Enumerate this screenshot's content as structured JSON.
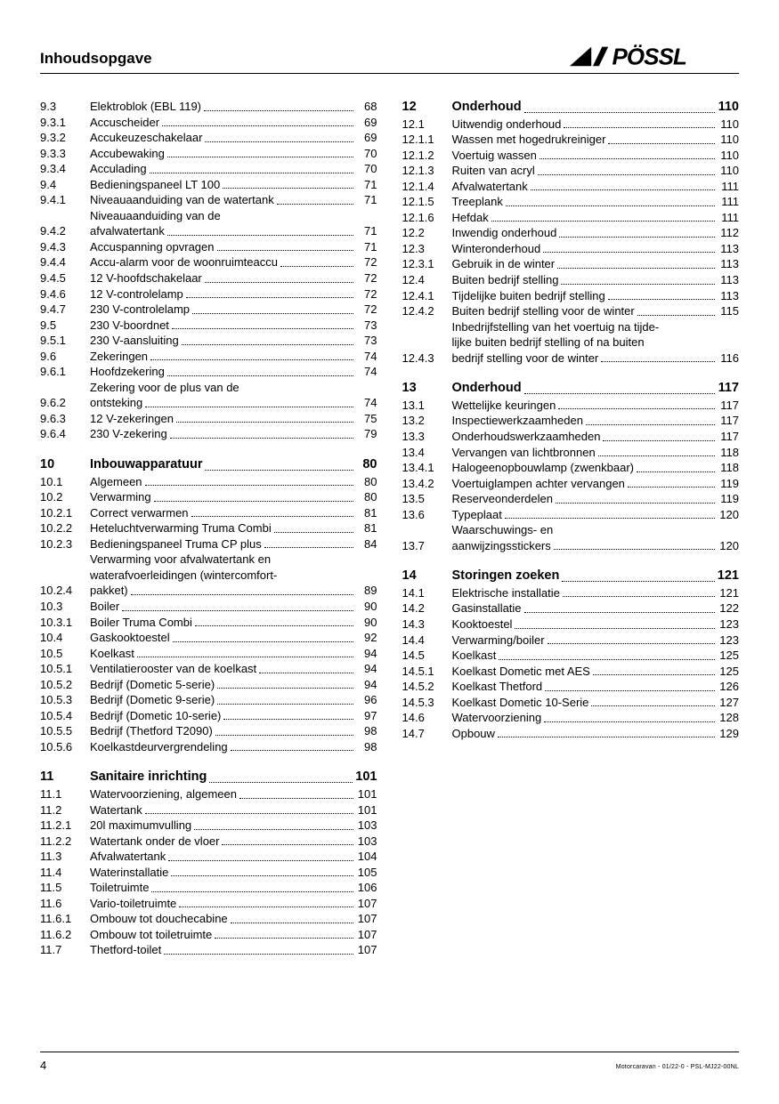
{
  "header": {
    "title": "Inhoudsopgave",
    "logo_text": "PÖSSL"
  },
  "page_number": "4",
  "footer_code": "Motorcaravan - 01/22-0 - PSL-MJ22-00NL",
  "left_column": [
    {
      "num": "9.3",
      "label": "Elektroblok (EBL 119)",
      "page": "68"
    },
    {
      "num": "9.3.1",
      "label": "Accuscheider",
      "page": "69"
    },
    {
      "num": "9.3.2",
      "label": "Accukeuzeschakelaar",
      "page": "69"
    },
    {
      "num": "9.3.3",
      "label": "Accubewaking",
      "page": "70"
    },
    {
      "num": "9.3.4",
      "label": "Acculading",
      "page": "70"
    },
    {
      "num": "9.4",
      "label": "Bedieningspaneel LT 100",
      "page": "71"
    },
    {
      "num": "9.4.1",
      "label": "Niveauaanduiding van de watertank",
      "page": "71"
    },
    {
      "num": "9.4.2",
      "label_lines": [
        "Niveauaanduiding van de",
        "afvalwatertank"
      ],
      "page": "71"
    },
    {
      "num": "9.4.3",
      "label": "Accuspanning opvragen",
      "page": "71"
    },
    {
      "num": "9.4.4",
      "label": "Accu-alarm voor de woonruimteaccu",
      "page": "72"
    },
    {
      "num": "9.4.5",
      "label": "12 V-hoofdschakelaar",
      "page": "72"
    },
    {
      "num": "9.4.6",
      "label": "12 V-controlelamp",
      "page": "72"
    },
    {
      "num": "9.4.7",
      "label": "230 V-controlelamp",
      "page": "72"
    },
    {
      "num": "9.5",
      "label": "230 V-boordnet",
      "page": "73"
    },
    {
      "num": "9.5.1",
      "label": "230 V-aansluiting",
      "page": "73"
    },
    {
      "num": "9.6",
      "label": "Zekeringen",
      "page": "74"
    },
    {
      "num": "9.6.1",
      "label": "Hoofdzekering",
      "page": "74"
    },
    {
      "num": "9.6.2",
      "label_lines": [
        "Zekering voor de plus van de",
        "ontsteking"
      ],
      "page": "74"
    },
    {
      "num": "9.6.3",
      "label": "12 V-zekeringen",
      "page": "75"
    },
    {
      "num": "9.6.4",
      "label": "230 V-zekering",
      "page": "79"
    },
    {
      "num": "10",
      "label": "Inbouwapparatuur",
      "page": "80",
      "section": true
    },
    {
      "num": "10.1",
      "label": "Algemeen",
      "page": "80"
    },
    {
      "num": "10.2",
      "label": "Verwarming",
      "page": "80"
    },
    {
      "num": "10.2.1",
      "label": "Correct verwarmen",
      "page": "81"
    },
    {
      "num": "10.2.2",
      "label": "Heteluchtverwarming Truma Combi",
      "page": "81"
    },
    {
      "num": "10.2.3",
      "label": "Bedieningspaneel Truma CP plus",
      "page": "84"
    },
    {
      "num": "10.2.4",
      "label_lines": [
        "Verwarming voor afvalwatertank en",
        "waterafvoerleidingen (wintercomfort-",
        "pakket)"
      ],
      "page": "89"
    },
    {
      "num": "10.3",
      "label": "Boiler",
      "page": "90"
    },
    {
      "num": "10.3.1",
      "label": "Boiler Truma Combi",
      "page": "90"
    },
    {
      "num": "10.4",
      "label": "Gaskooktoestel",
      "page": "92"
    },
    {
      "num": "10.5",
      "label": "Koelkast",
      "page": "94"
    },
    {
      "num": "10.5.1",
      "label": "Ventilatierooster van de koelkast",
      "page": "94"
    },
    {
      "num": "10.5.2",
      "label": "Bedrijf (Dometic 5-serie)",
      "page": "94"
    },
    {
      "num": "10.5.3",
      "label": "Bedrijf (Dometic 9-serie)",
      "page": "96"
    },
    {
      "num": "10.5.4",
      "label": "Bedrijf (Dometic 10-serie)",
      "page": "97"
    },
    {
      "num": "10.5.5",
      "label": "Bedrijf (Thetford T2090)",
      "page": "98"
    },
    {
      "num": "10.5.6",
      "label": "Koelkastdeurvergrendeling",
      "page": "98"
    },
    {
      "num": "11",
      "label": "Sanitaire inrichting",
      "page": "101",
      "section": true
    },
    {
      "num": "11.1",
      "label": "Watervoorziening, algemeen",
      "page": "101"
    },
    {
      "num": "11.2",
      "label": "Watertank",
      "page": "101"
    },
    {
      "num": "11.2.1",
      "label": "20l maximumvulling",
      "page": "103"
    },
    {
      "num": "11.2.2",
      "label": "Watertank onder de vloer",
      "page": "103"
    },
    {
      "num": "11.3",
      "label": "Afvalwatertank",
      "page": "104"
    },
    {
      "num": "11.4",
      "label": "Waterinstallatie",
      "page": "105"
    },
    {
      "num": "11.5",
      "label": "Toiletruimte",
      "page": "106"
    },
    {
      "num": "11.6",
      "label": "Vario-toiletruimte",
      "page": "107"
    },
    {
      "num": "11.6.1",
      "label": "Ombouw tot douchecabine",
      "page": "107"
    },
    {
      "num": "11.6.2",
      "label": "Ombouw tot toiletruimte",
      "page": "107"
    },
    {
      "num": "11.7",
      "label": "Thetford-toilet",
      "page": "107"
    }
  ],
  "right_column": [
    {
      "num": "12",
      "label": "Onderhoud",
      "page": "110",
      "section": true,
      "first": true
    },
    {
      "num": "12.1",
      "label": "Uitwendig onderhoud",
      "page": "110"
    },
    {
      "num": "12.1.1",
      "label": "Wassen met hogedrukreiniger",
      "page": "110"
    },
    {
      "num": "12.1.2",
      "label": "Voertuig wassen",
      "page": "110"
    },
    {
      "num": "12.1.3",
      "label": "Ruiten van acryl",
      "page": "110"
    },
    {
      "num": "12.1.4",
      "label": "Afvalwatertank",
      "page": "111"
    },
    {
      "num": "12.1.5",
      "label": "Treeplank",
      "page": "111"
    },
    {
      "num": "12.1.6",
      "label": "Hefdak",
      "page": "111"
    },
    {
      "num": "12.2",
      "label": "Inwendig onderhoud",
      "page": "112"
    },
    {
      "num": "12.3",
      "label": "Winteronderhoud",
      "page": "113"
    },
    {
      "num": "12.3.1",
      "label": "Gebruik in de winter",
      "page": "113"
    },
    {
      "num": "12.4",
      "label": "Buiten bedrijf stelling",
      "page": "113"
    },
    {
      "num": "12.4.1",
      "label": "Tijdelijke buiten bedrijf stelling",
      "page": "113"
    },
    {
      "num": "12.4.2",
      "label": "Buiten bedrijf stelling voor de winter",
      "page": "115"
    },
    {
      "num": "12.4.3",
      "label_lines": [
        "Inbedrijfstelling van het voertuig na tijde-",
        "lijke buiten bedrijf stelling of na buiten",
        "bedrijf stelling voor de winter"
      ],
      "page": "116"
    },
    {
      "num": "13",
      "label": "Onderhoud",
      "page": "117",
      "section": true
    },
    {
      "num": "13.1",
      "label": "Wettelijke keuringen",
      "page": "117"
    },
    {
      "num": "13.2",
      "label": "Inspectiewerkzaamheden",
      "page": "117"
    },
    {
      "num": "13.3",
      "label": "Onderhoudswerkzaamheden",
      "page": "117"
    },
    {
      "num": "13.4",
      "label": "Vervangen van lichtbronnen",
      "page": "118"
    },
    {
      "num": "13.4.1",
      "label": "Halogeenopbouwlamp (zwenkbaar)",
      "page": "118"
    },
    {
      "num": "13.4.2",
      "label": "Voertuiglampen achter vervangen",
      "page": "119"
    },
    {
      "num": "13.5",
      "label": "Reserveonderdelen",
      "page": "119"
    },
    {
      "num": "13.6",
      "label": "Typeplaat",
      "page": "120"
    },
    {
      "num": "13.7",
      "label_lines": [
        "Waarschuwings- en",
        "aanwijzingsstickers"
      ],
      "page": "120"
    },
    {
      "num": "14",
      "label": "Storingen zoeken",
      "page": "121",
      "section": true
    },
    {
      "num": "14.1",
      "label": "Elektrische installatie",
      "page": "121"
    },
    {
      "num": "14.2",
      "label": "Gasinstallatie",
      "page": "122"
    },
    {
      "num": "14.3",
      "label": "Kooktoestel",
      "page": "123"
    },
    {
      "num": "14.4",
      "label": "Verwarming/boiler",
      "page": "123"
    },
    {
      "num": "14.5",
      "label": "Koelkast",
      "page": "125"
    },
    {
      "num": "14.5.1",
      "label": "Koelkast Dometic met AES",
      "page": "125"
    },
    {
      "num": "14.5.2",
      "label": "Koelkast Thetford",
      "page": "126"
    },
    {
      "num": "14.5.3",
      "label": "Koelkast Dometic 10-Serie",
      "page": "127"
    },
    {
      "num": "14.6",
      "label": "Watervoorziening",
      "page": "128"
    },
    {
      "num": "14.7",
      "label": "Opbouw",
      "page": "129"
    }
  ]
}
